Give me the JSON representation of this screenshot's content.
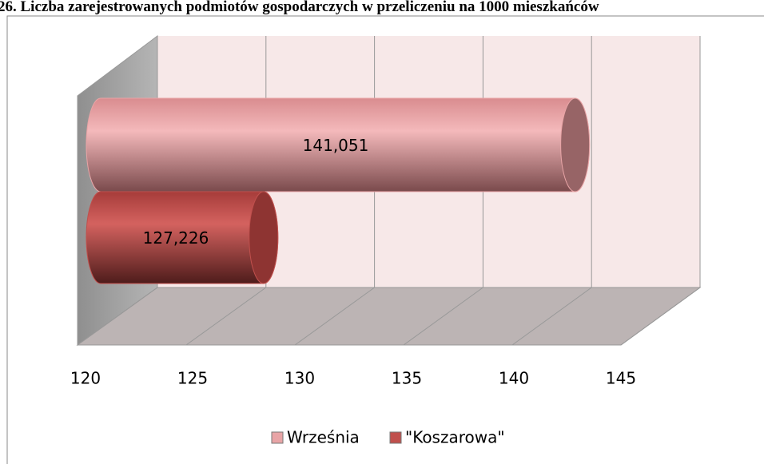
{
  "chart_data": {
    "type": "bar3d_horizontal_cylinder",
    "title": "26. Liczba zarejestrowanych podmiotów gospodarczych w przeliczeniu na 1000 mieszkańców",
    "categories": [
      null
    ],
    "series": [
      {
        "name": "Września",
        "color": "#e8a4a6",
        "values": [
          141.051
        ],
        "value_labels": [
          "141,051"
        ]
      },
      {
        "name": "\"Koszarowa\"",
        "color": "#c0504d",
        "values": [
          127.226
        ],
        "value_labels": [
          "127,226"
        ]
      }
    ],
    "xlim": [
      120,
      145
    ],
    "xticks": [
      120,
      125,
      130,
      135,
      140,
      145
    ],
    "grid": true,
    "legend": "bottom"
  }
}
